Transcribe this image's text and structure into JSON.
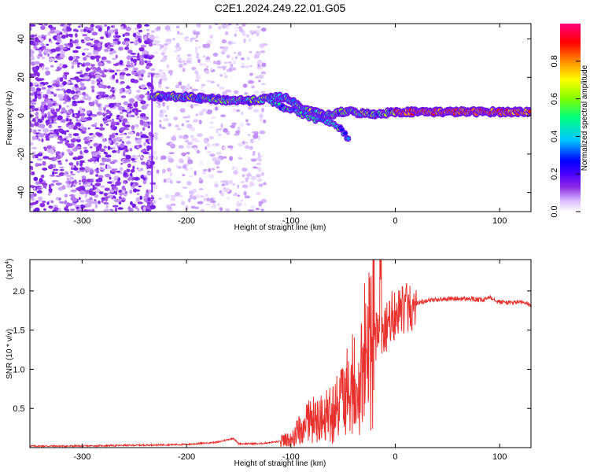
{
  "title": "C2E1.2024.249.22.01.G05",
  "chart_data": [
    {
      "type": "heatmap",
      "title": "C2E1.2024.249.22.01.G05",
      "xlabel": "Height of straight line (km)",
      "ylabel": "Frequency (Hz)",
      "xlim": [
        -350,
        130
      ],
      "ylim": [
        -50,
        48
      ],
      "xticks": [
        -300,
        -200,
        -100,
        0,
        100
      ],
      "yticks": [
        -40,
        -20,
        0,
        20,
        40
      ],
      "colorbar": {
        "label": "Normalized spectral amplitude",
        "range": [
          0,
          1
        ],
        "ticks": [
          "0.0",
          "0.2",
          "0.4",
          "0.6",
          "0.8"
        ],
        "colormap": [
          "#ffffff",
          "#d6b8ff",
          "#8a2be2",
          "#4b00ff",
          "#0000ff",
          "#00c8ff",
          "#00ff80",
          "#7fff00",
          "#ffff00",
          "#ff8c00",
          "#ff0000",
          "#ff0080"
        ]
      },
      "ridge": {
        "x": [
          -233,
          -210,
          -185,
          -160,
          -135,
          -120,
          -110,
          -100,
          -90,
          -80,
          -65,
          -50,
          -40,
          -30,
          -15,
          0,
          25,
          50,
          75,
          90,
          110,
          130
        ],
        "frequency": [
          10,
          10,
          9,
          8,
          8,
          9,
          10,
          8,
          4,
          2,
          0,
          2,
          2,
          1,
          1,
          2,
          2,
          2,
          2,
          2,
          2,
          2
        ]
      },
      "branch": {
        "x": [
          -120,
          -105,
          -90,
          -75,
          -60,
          -50,
          -45
        ],
        "frequency": [
          7,
          4,
          1,
          -2,
          -4,
          -8,
          -12
        ]
      }
    },
    {
      "type": "line",
      "xlabel": "Height of straight line (km)",
      "ylabel": "SNR (10 * v/v)",
      "y_multiplier": "(x10",
      "y_multiplier_exp": "4",
      "y_multiplier_close": ")",
      "xlim": [
        -350,
        130
      ],
      "ylim": [
        0,
        2.4
      ],
      "xticks": [
        -300,
        -200,
        -100,
        0,
        100
      ],
      "yticks": [
        "0.5",
        "1.0",
        "1.5",
        "2.0"
      ],
      "color": "#e8312d",
      "series": [
        {
          "x": [
            -350,
            -300,
            -250,
            -200,
            -170,
            -155,
            -150,
            -130,
            -110,
            -100,
            -90,
            -80,
            -70,
            -60,
            -50,
            -40,
            -30,
            -25,
            -20,
            -15,
            -10,
            0,
            10,
            20,
            30,
            50,
            70,
            85,
            90,
            100,
            110,
            120,
            130
          ],
          "values": [
            0.02,
            0.02,
            0.03,
            0.04,
            0.07,
            0.12,
            0.05,
            0.05,
            0.08,
            0.12,
            0.25,
            0.35,
            0.4,
            0.45,
            0.6,
            0.8,
            1.1,
            1.3,
            1.4,
            1.5,
            1.55,
            1.7,
            1.78,
            1.84,
            1.88,
            1.9,
            1.9,
            1.88,
            1.93,
            1.86,
            1.85,
            1.86,
            1.82
          ]
        }
      ]
    }
  ]
}
